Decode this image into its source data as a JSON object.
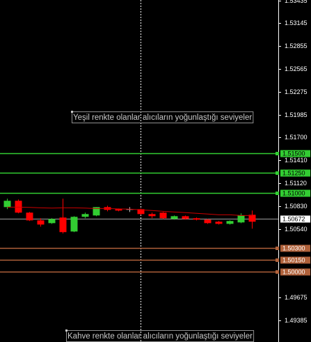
{
  "chart_data": {
    "type": "candlestick",
    "ylim": [
      1.4911,
      1.5344
    ],
    "yticks": [
      {
        "value": 1.53435,
        "label": "1.53435"
      },
      {
        "value": 1.53145,
        "label": "1.53145"
      },
      {
        "value": 1.52855,
        "label": "1.52855"
      },
      {
        "value": 1.52565,
        "label": "1.52565"
      },
      {
        "value": 1.52275,
        "label": "1.52275"
      },
      {
        "value": 1.51985,
        "label": "1.51985"
      },
      {
        "value": 1.517,
        "label": "1.51700"
      },
      {
        "value": 1.5141,
        "label": "1.51410"
      },
      {
        "value": 1.5112,
        "label": "1.51120"
      },
      {
        "value": 1.5083,
        "label": "1.50830"
      },
      {
        "value": 1.5054,
        "label": "1.50540"
      },
      {
        "value": 1.49675,
        "label": "1.49675"
      },
      {
        "value": 1.49385,
        "label": "1.49385"
      }
    ],
    "up_color": "#32cd32",
    "down_color": "#ff0000",
    "doji_color": "#c0c0c0",
    "candles": {
      "open": [
        1.50818,
        1.50898,
        1.50748,
        1.5065,
        1.50615,
        1.50686,
        1.50509,
        1.50695,
        1.50712,
        1.50818,
        1.50792,
        1.50792,
        1.50792,
        1.5073,
        1.50748,
        1.50668,
        1.50703,
        1.50677,
        1.50659,
        1.50633,
        1.50606,
        1.50624,
        1.50721
      ],
      "high": [
        1.50924,
        1.50915,
        1.50756,
        1.50677,
        1.50677,
        1.50924,
        1.50703,
        1.50748,
        1.50818,
        1.50836,
        1.508,
        1.50818,
        1.508,
        1.50748,
        1.50756,
        1.50712,
        1.50712,
        1.50686,
        1.50668,
        1.50642,
        1.5065,
        1.50739,
        1.50774
      ],
      "low": [
        1.50792,
        1.50739,
        1.50642,
        1.50571,
        1.50606,
        1.50483,
        1.50501,
        1.50677,
        1.50703,
        1.50765,
        1.50765,
        1.50756,
        1.50721,
        1.50677,
        1.50668,
        1.50659,
        1.50659,
        1.5065,
        1.50606,
        1.50597,
        1.50597,
        1.50615,
        1.50545
      ],
      "close": [
        1.50898,
        1.50748,
        1.5065,
        1.50597,
        1.50668,
        1.50501,
        1.50695,
        1.5073,
        1.50818,
        1.50783,
        1.50774,
        1.50792,
        1.5073,
        1.50703,
        1.50677,
        1.50703,
        1.50668,
        1.50659,
        1.50615,
        1.50606,
        1.50642,
        1.50712,
        1.50633
      ]
    },
    "moving_average": {
      "color": "#cc0000",
      "values": [
        1.50818,
        1.50818,
        1.50814,
        1.50809,
        1.50805,
        1.50809,
        1.50809,
        1.50805,
        1.508,
        1.508,
        1.50796,
        1.50792,
        1.50783,
        1.50774,
        1.50765,
        1.50756,
        1.50748,
        1.50739,
        1.5073,
        1.50721,
        1.50721,
        1.50712,
        1.50712
      ]
    },
    "levels": [
      {
        "value": 1.515,
        "label": "1.51500",
        "color": "#32cd32"
      },
      {
        "value": 1.5125,
        "label": "1.51250",
        "color": "#32cd32"
      },
      {
        "value": 1.51,
        "label": "1.51000",
        "color": "#32cd32"
      },
      {
        "value": 1.503,
        "label": "1.50300",
        "color": "#b0613a"
      },
      {
        "value": 1.5015,
        "label": "1.50150",
        "color": "#b0613a"
      },
      {
        "value": 1.5,
        "label": "1.50000",
        "color": "#b0613a"
      }
    ],
    "current_price": {
      "value": 1.50672,
      "label": "1.50672",
      "color": "#a0a0a0"
    },
    "annotations": [
      {
        "text": "Yeşil renkte olanlar alıcıların yoğunlaştığı seviyeler"
      },
      {
        "text": "Kahve renkte olanlar alıcıların yoğunlaştığı seviyeler"
      }
    ]
  }
}
